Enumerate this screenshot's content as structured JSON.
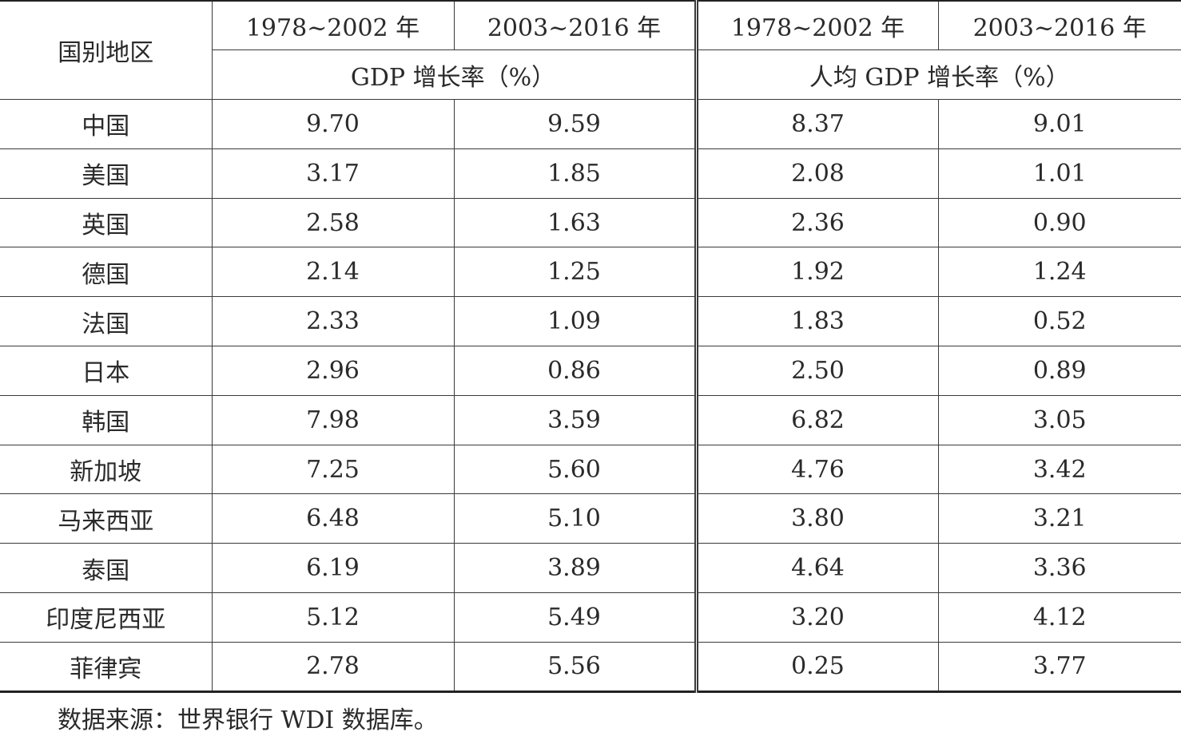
{
  "table": {
    "header": {
      "region": "国别地区",
      "period_1": "1978~2002 年",
      "period_2": "2003~2016 年",
      "gdp_group": "GDP 增长率（%）",
      "per_capita_group": "人均 GDP 增长率（%）"
    },
    "rows": [
      {
        "region": "中国",
        "gdp_1": "9.70",
        "gdp_2": "9.59",
        "pc_1": "8.37",
        "pc_2": "9.01"
      },
      {
        "region": "美国",
        "gdp_1": "3.17",
        "gdp_2": "1.85",
        "pc_1": "2.08",
        "pc_2": "1.01"
      },
      {
        "region": "英国",
        "gdp_1": "2.58",
        "gdp_2": "1.63",
        "pc_1": "2.36",
        "pc_2": "0.90"
      },
      {
        "region": "德国",
        "gdp_1": "2.14",
        "gdp_2": "1.25",
        "pc_1": "1.92",
        "pc_2": "1.24"
      },
      {
        "region": "法国",
        "gdp_1": "2.33",
        "gdp_2": "1.09",
        "pc_1": "1.83",
        "pc_2": "0.52"
      },
      {
        "region": "日本",
        "gdp_1": "2.96",
        "gdp_2": "0.86",
        "pc_1": "2.50",
        "pc_2": "0.89"
      },
      {
        "region": "韩国",
        "gdp_1": "7.98",
        "gdp_2": "3.59",
        "pc_1": "6.82",
        "pc_2": "3.05"
      },
      {
        "region": "新加坡",
        "gdp_1": "7.25",
        "gdp_2": "5.60",
        "pc_1": "4.76",
        "pc_2": "3.42"
      },
      {
        "region": "马来西亚",
        "gdp_1": "6.48",
        "gdp_2": "5.10",
        "pc_1": "3.80",
        "pc_2": "3.21"
      },
      {
        "region": "泰国",
        "gdp_1": "6.19",
        "gdp_2": "3.89",
        "pc_1": "4.64",
        "pc_2": "3.36"
      },
      {
        "region": "印度尼西亚",
        "gdp_1": "5.12",
        "gdp_2": "5.49",
        "pc_1": "3.20",
        "pc_2": "4.12"
      },
      {
        "region": "菲律宾",
        "gdp_1": "2.78",
        "gdp_2": "5.56",
        "pc_1": "0.25",
        "pc_2": "3.77"
      }
    ]
  },
  "source_note": "数据来源：世界银行 WDI 数据库。"
}
